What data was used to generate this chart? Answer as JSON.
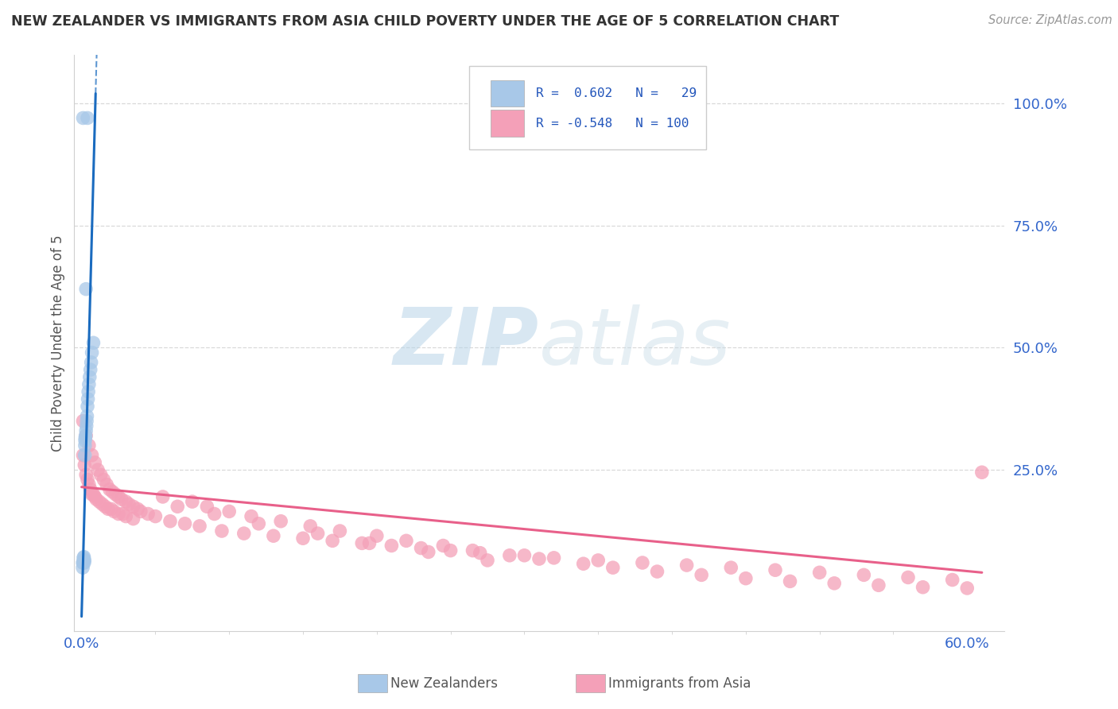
{
  "title": "NEW ZEALANDER VS IMMIGRANTS FROM ASIA CHILD POVERTY UNDER THE AGE OF 5 CORRELATION CHART",
  "source": "Source: ZipAtlas.com",
  "ylabel": "Child Poverty Under the Age of 5",
  "blue_color": "#a8c8e8",
  "pink_color": "#f4a0b8",
  "blue_line_color": "#1a6bbf",
  "pink_line_color": "#e8608a",
  "grid_color": "#d0d0d0",
  "watermark_color": "#d0e4f0",
  "nz_x": [
    0.0008,
    0.0008,
    0.001,
    0.0012,
    0.0013,
    0.0015,
    0.0016,
    0.0018,
    0.002,
    0.0022,
    0.0023,
    0.0024,
    0.0025,
    0.0027,
    0.003,
    0.0033,
    0.0035,
    0.0037,
    0.004,
    0.0043,
    0.0046,
    0.005,
    0.0055,
    0.006,
    0.0065,
    0.007,
    0.008,
    0.003,
    0.004
  ],
  "nz_y": [
    0.05,
    0.06,
    0.97,
    0.06,
    0.07,
    0.065,
    0.072,
    0.06,
    0.065,
    0.28,
    0.3,
    0.31,
    0.315,
    0.32,
    0.33,
    0.34,
    0.35,
    0.36,
    0.38,
    0.395,
    0.41,
    0.425,
    0.44,
    0.455,
    0.47,
    0.49,
    0.51,
    0.62,
    0.97
  ],
  "asia_x": [
    0.001,
    0.002,
    0.003,
    0.004,
    0.005,
    0.006,
    0.007,
    0.008,
    0.009,
    0.01,
    0.012,
    0.014,
    0.016,
    0.018,
    0.02,
    0.022,
    0.025,
    0.028,
    0.03,
    0.035,
    0.001,
    0.003,
    0.005,
    0.007,
    0.009,
    0.011,
    0.013,
    0.015,
    0.017,
    0.019,
    0.021,
    0.023,
    0.025,
    0.027,
    0.03,
    0.032,
    0.035,
    0.038,
    0.04,
    0.045,
    0.05,
    0.06,
    0.07,
    0.08,
    0.095,
    0.11,
    0.13,
    0.15,
    0.17,
    0.19,
    0.21,
    0.23,
    0.25,
    0.27,
    0.3,
    0.32,
    0.35,
    0.38,
    0.41,
    0.44,
    0.47,
    0.5,
    0.53,
    0.56,
    0.59,
    0.61,
    0.055,
    0.075,
    0.085,
    0.1,
    0.115,
    0.135,
    0.155,
    0.175,
    0.2,
    0.22,
    0.245,
    0.265,
    0.29,
    0.31,
    0.34,
    0.36,
    0.39,
    0.42,
    0.45,
    0.48,
    0.51,
    0.54,
    0.57,
    0.6,
    0.065,
    0.09,
    0.12,
    0.16,
    0.195,
    0.235,
    0.275
  ],
  "asia_y": [
    0.28,
    0.26,
    0.24,
    0.23,
    0.22,
    0.21,
    0.2,
    0.2,
    0.195,
    0.19,
    0.185,
    0.18,
    0.175,
    0.17,
    0.17,
    0.165,
    0.16,
    0.16,
    0.155,
    0.15,
    0.35,
    0.32,
    0.3,
    0.28,
    0.265,
    0.25,
    0.24,
    0.23,
    0.22,
    0.21,
    0.205,
    0.2,
    0.195,
    0.19,
    0.185,
    0.18,
    0.175,
    0.17,
    0.165,
    0.16,
    0.155,
    0.145,
    0.14,
    0.135,
    0.125,
    0.12,
    0.115,
    0.11,
    0.105,
    0.1,
    0.095,
    0.09,
    0.085,
    0.08,
    0.075,
    0.07,
    0.065,
    0.06,
    0.055,
    0.05,
    0.045,
    0.04,
    0.035,
    0.03,
    0.025,
    0.245,
    0.195,
    0.185,
    0.175,
    0.165,
    0.155,
    0.145,
    0.135,
    0.125,
    0.115,
    0.105,
    0.095,
    0.085,
    0.075,
    0.068,
    0.058,
    0.05,
    0.042,
    0.035,
    0.028,
    0.022,
    0.018,
    0.014,
    0.01,
    0.008,
    0.175,
    0.16,
    0.14,
    0.12,
    0.1,
    0.082,
    0.065
  ],
  "nz_line_x0": 0.0,
  "nz_line_y0": -0.05,
  "nz_line_x1": 0.0095,
  "nz_line_y1": 1.02,
  "asia_line_x0": 0.0,
  "asia_line_y0": 0.215,
  "asia_line_x1": 0.61,
  "asia_line_y1": 0.04,
  "xlim_min": -0.005,
  "xlim_max": 0.625,
  "ylim_min": -0.08,
  "ylim_max": 1.1
}
